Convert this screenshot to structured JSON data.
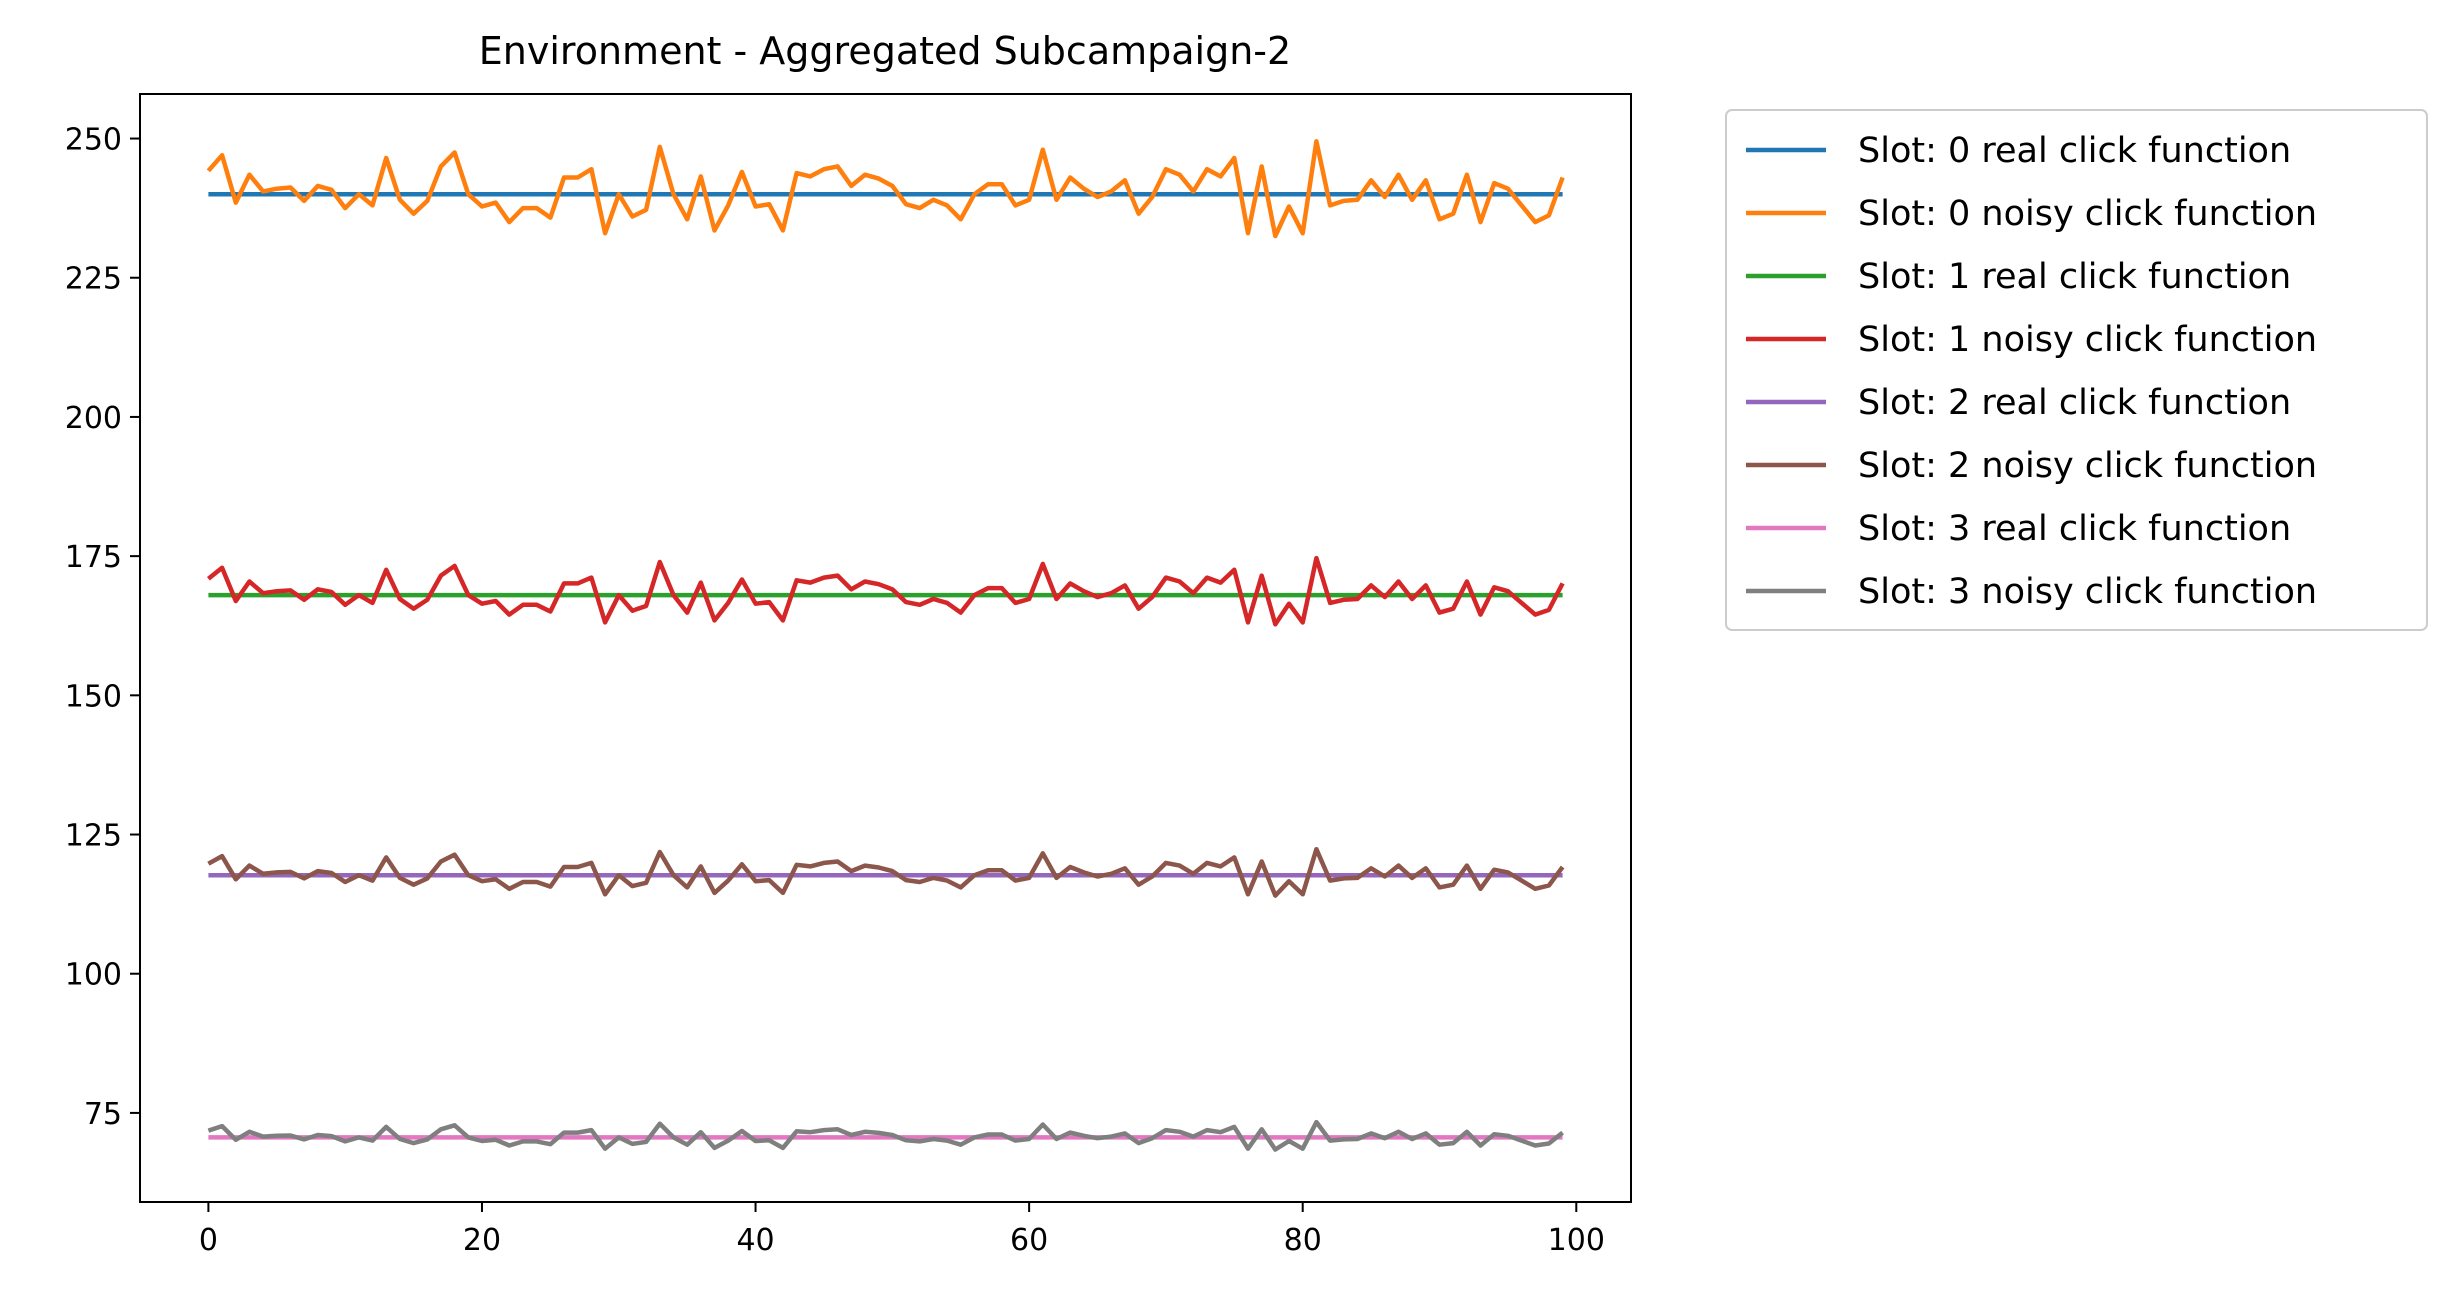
{
  "chart_data": {
    "type": "line",
    "title": "Environment - Aggregated Subcampaign-2",
    "xlabel": "",
    "ylabel": "",
    "xlim": [
      -5,
      104
    ],
    "ylim": [
      59,
      258
    ],
    "xticks": [
      0,
      20,
      40,
      60,
      80,
      100
    ],
    "yticks": [
      75,
      100,
      125,
      150,
      175,
      200,
      225,
      250
    ],
    "grid": false,
    "legend_position": "outside-right-top",
    "x": [
      0,
      1,
      2,
      3,
      4,
      5,
      6,
      7,
      8,
      9,
      10,
      11,
      12,
      13,
      14,
      15,
      16,
      17,
      18,
      19,
      20,
      21,
      22,
      23,
      24,
      25,
      26,
      27,
      28,
      29,
      30,
      31,
      32,
      33,
      34,
      35,
      36,
      37,
      38,
      39,
      40,
      41,
      42,
      43,
      44,
      45,
      46,
      47,
      48,
      49,
      50,
      51,
      52,
      53,
      54,
      55,
      56,
      57,
      58,
      59,
      60,
      61,
      62,
      63,
      64,
      65,
      66,
      67,
      68,
      69,
      70,
      71,
      72,
      73,
      74,
      75,
      76,
      77,
      78,
      79,
      80,
      81,
      82,
      83,
      84,
      85,
      86,
      87,
      88,
      89,
      90,
      91,
      92,
      93,
      94,
      95,
      96,
      97,
      98,
      99
    ],
    "noise_offsets": [
      4.2,
      7.0,
      -1.5,
      3.5,
      0.5,
      1.0,
      1.2,
      -1.2,
      1.5,
      0.8,
      -2.5,
      0.0,
      -2.0,
      6.5,
      -1.0,
      -3.5,
      -1.2,
      5.0,
      7.5,
      0.0,
      -2.2,
      -1.5,
      -5.0,
      -2.5,
      -2.5,
      -4.2,
      3.0,
      3.0,
      4.5,
      -7.0,
      0.0,
      -4.0,
      -2.8,
      8.5,
      0.0,
      -4.5,
      3.2,
      -6.5,
      -2.0,
      4.0,
      -2.2,
      -1.8,
      -6.5,
      3.8,
      3.2,
      4.5,
      5.0,
      1.5,
      3.5,
      2.8,
      1.5,
      -1.8,
      -2.5,
      -1.0,
      -2.0,
      -4.5,
      0.0,
      1.8,
      1.8,
      -2.0,
      -1.0,
      8.0,
      -1.0,
      3.0,
      1.0,
      -0.5,
      0.5,
      2.5,
      -3.5,
      -0.5,
      4.5,
      3.5,
      0.5,
      4.5,
      3.2,
      6.5,
      -7.0,
      5.0,
      -7.5,
      -2.2,
      -7.0,
      9.5,
      -2.0,
      -1.2,
      -1.0,
      2.5,
      -0.5,
      3.5,
      -1.0,
      2.5,
      -4.5,
      -3.5,
      3.5,
      -5.0,
      2.0,
      1.0,
      -2.0,
      -5.0,
      -3.8,
      3.0
    ],
    "series": [
      {
        "name": "Slot: 0 real click function",
        "color": "#1f77b4",
        "kind": "real",
        "level": 240.0,
        "noise_scale": 1.0
      },
      {
        "name": "Slot: 0 noisy click function",
        "color": "#ff7f0e",
        "kind": "noisy",
        "level": 240.0,
        "noise_scale": 1.0
      },
      {
        "name": "Slot: 1 real click function",
        "color": "#2ca02c",
        "kind": "real",
        "level": 168.0,
        "noise_scale": 0.7
      },
      {
        "name": "Slot: 1 noisy click function",
        "color": "#d62728",
        "kind": "noisy",
        "level": 168.0,
        "noise_scale": 0.7
      },
      {
        "name": "Slot: 2 real click function",
        "color": "#9467bd",
        "kind": "real",
        "level": 117.7,
        "noise_scale": 0.49
      },
      {
        "name": "Slot: 2 noisy click function",
        "color": "#8c564b",
        "kind": "noisy",
        "level": 117.7,
        "noise_scale": 0.49
      },
      {
        "name": "Slot: 3 real click function",
        "color": "#e377c2",
        "kind": "real",
        "level": 70.6,
        "noise_scale": 0.29
      },
      {
        "name": "Slot: 3 noisy click function",
        "color": "#7f7f7f",
        "kind": "noisy",
        "level": 70.6,
        "noise_scale": 0.29
      }
    ]
  }
}
